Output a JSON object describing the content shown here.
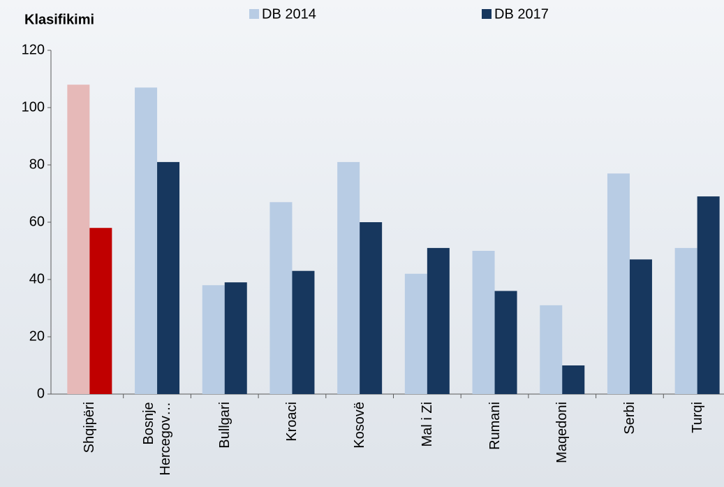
{
  "chart_data": {
    "type": "bar",
    "title": "Klasifikimi",
    "categories": [
      "Shqipëri",
      "Bosnje\nHercegov…",
      "Bullgari",
      "Kroaci",
      "Kosovë",
      "Mal i Zi",
      "Rumani",
      "Maqedoni",
      "Serbi",
      "Turqi"
    ],
    "series": [
      {
        "name": "DB 2014",
        "color": "#b8cce4",
        "values": [
          108,
          107,
          38,
          67,
          81,
          42,
          50,
          31,
          77,
          51
        ],
        "colors": [
          "#e6b9b8",
          "#b8cce4",
          "#b8cce4",
          "#b8cce4",
          "#b8cce4",
          "#b8cce4",
          "#b8cce4",
          "#b8cce4",
          "#b8cce4",
          "#b8cce4"
        ]
      },
      {
        "name": "DB 2017",
        "color": "#17375e",
        "values": [
          58,
          81,
          39,
          43,
          60,
          51,
          36,
          10,
          47,
          69
        ],
        "colors": [
          "#c00000",
          "#17375e",
          "#17375e",
          "#17375e",
          "#17375e",
          "#17375e",
          "#17375e",
          "#17375e",
          "#17375e",
          "#17375e"
        ]
      }
    ],
    "ylim": [
      0,
      120
    ],
    "yticks": [
      0,
      20,
      40,
      60,
      80,
      100,
      120
    ],
    "grid": false
  }
}
